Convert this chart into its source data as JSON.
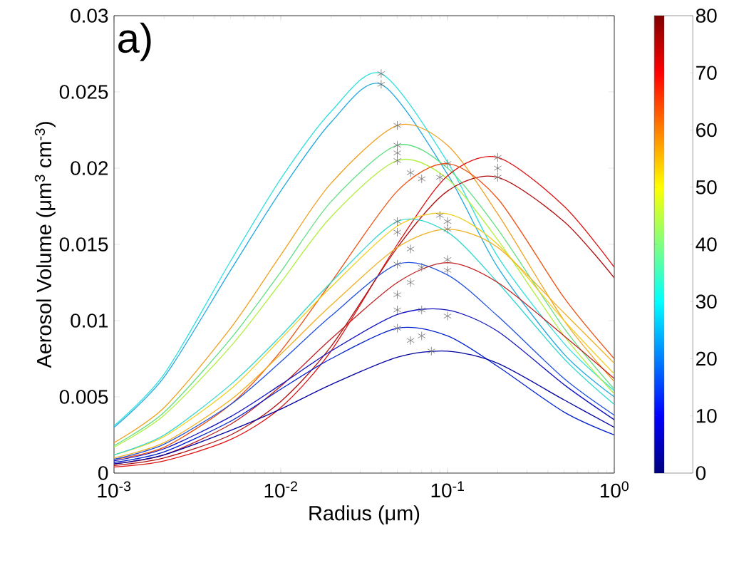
{
  "chart_data": {
    "type": "line",
    "xlabel": "Radius (μm)",
    "ylabel": "Aerosol Volume (μm$^{3}$ cm$^{-3}$)",
    "annotations": [
      "a)"
    ],
    "log": "x",
    "x": [
      0.001,
      0.002,
      0.005,
      0.01,
      0.02,
      0.05,
      0.1,
      0.2,
      0.5,
      1
    ],
    "xlim": [
      0.001,
      1
    ],
    "xticks": [
      {
        "value": 0.001,
        "label": "10$^{-3}$"
      },
      {
        "value": 0.01,
        "label": "10$^{-2}$"
      },
      {
        "value": 0.1,
        "label": "10$^{-1}$"
      },
      {
        "value": 1,
        "label": "10$^{0}$"
      }
    ],
    "ylim": [
      0,
      0.03
    ],
    "yticks": [
      0,
      0.005,
      0.01,
      0.015,
      0.02,
      0.025,
      0.03
    ],
    "clim": [
      0,
      80
    ],
    "cticks": [
      0,
      10,
      20,
      30,
      40,
      50,
      60,
      70,
      80
    ],
    "series": [
      {
        "color": "#30e0e0",
        "x": [
          0.001,
          0.002,
          0.005,
          0.01,
          0.02,
          0.04,
          0.1,
          0.2,
          0.5,
          1
        ],
        "values": [
          0.0031,
          0.0065,
          0.0139,
          0.0193,
          0.0237,
          0.0262,
          0.0204,
          0.0142,
          0.0085,
          0.0054
        ]
      },
      {
        "color": "#20a8e0",
        "x": [
          0.001,
          0.002,
          0.005,
          0.01,
          0.02,
          0.04,
          0.1,
          0.2,
          0.5,
          1
        ],
        "values": [
          0.003,
          0.0063,
          0.0133,
          0.0185,
          0.023,
          0.0255,
          0.0196,
          0.0135,
          0.0078,
          0.005
        ]
      },
      {
        "color": "#f0a020",
        "values": [
          0.002,
          0.0043,
          0.0095,
          0.0143,
          0.019,
          0.0228,
          0.0215,
          0.017,
          0.01,
          0.006
        ]
      },
      {
        "color": "#60e080",
        "values": [
          0.0018,
          0.004,
          0.0088,
          0.0132,
          0.0178,
          0.0215,
          0.02,
          0.016,
          0.0095,
          0.0055
        ]
      },
      {
        "color": "#b0f040",
        "values": [
          0.0017,
          0.0038,
          0.0083,
          0.0125,
          0.0168,
          0.0205,
          0.0193,
          0.0153,
          0.009,
          0.0052
        ]
      },
      {
        "color": "#e01010",
        "values": [
          0.0004,
          0.0008,
          0.0022,
          0.0043,
          0.008,
          0.015,
          0.0195,
          0.0207,
          0.0175,
          0.0135
        ]
      },
      {
        "color": "#b01010",
        "values": [
          0.0005,
          0.001,
          0.0025,
          0.0047,
          0.0083,
          0.0148,
          0.0185,
          0.0194,
          0.0165,
          0.0128
        ]
      },
      {
        "color": "#f05010",
        "values": [
          0.0009,
          0.0017,
          0.0045,
          0.008,
          0.0125,
          0.0185,
          0.0203,
          0.018,
          0.0115,
          0.0075
        ]
      },
      {
        "color": "#f0d020",
        "values": [
          0.0012,
          0.0024,
          0.0055,
          0.0088,
          0.0122,
          0.0162,
          0.017,
          0.015,
          0.01,
          0.0065
        ]
      },
      {
        "color": "#f0b020",
        "values": [
          0.001,
          0.002,
          0.0048,
          0.0078,
          0.011,
          0.0148,
          0.016,
          0.0148,
          0.0105,
          0.0072
        ]
      },
      {
        "color": "#30d8d0",
        "values": [
          0.0012,
          0.0025,
          0.0058,
          0.009,
          0.0125,
          0.0165,
          0.0158,
          0.0125,
          0.0075,
          0.0045
        ]
      },
      {
        "color": "#2050e0",
        "values": [
          0.0009,
          0.0019,
          0.0045,
          0.0073,
          0.0103,
          0.0137,
          0.013,
          0.0103,
          0.0062,
          0.0038
        ]
      },
      {
        "color": "#c02020",
        "values": [
          0.0006,
          0.0012,
          0.0032,
          0.0057,
          0.0088,
          0.0125,
          0.0138,
          0.0125,
          0.009,
          0.0062
        ]
      },
      {
        "color": "#1010c0",
        "values": [
          0.0008,
          0.0016,
          0.0037,
          0.0058,
          0.008,
          0.0104,
          0.0107,
          0.0093,
          0.0058,
          0.0035
        ]
      },
      {
        "color": "#0020d0",
        "values": [
          0.0007,
          0.0014,
          0.0034,
          0.0055,
          0.0075,
          0.0095,
          0.009,
          0.007,
          0.004,
          0.0025
        ]
      },
      {
        "color": "#0000a0",
        "values": [
          0.0006,
          0.0012,
          0.0028,
          0.0042,
          0.0058,
          0.0076,
          0.008,
          0.0072,
          0.0048,
          0.003
        ]
      },
      {
        "type": "scatter",
        "marker": "cross",
        "color": "#707070",
        "x": [
          0.04,
          0.04,
          0.05,
          0.05,
          0.05,
          0.05,
          0.06,
          0.07,
          0.09,
          0.1,
          0.2,
          0.2,
          0.2,
          0.05,
          0.05,
          0.09,
          0.1,
          0.1,
          0.06,
          0.05,
          0.07,
          0.1,
          0.1,
          0.06,
          0.05,
          0.05,
          0.07,
          0.05,
          0.06,
          0.07,
          0.08,
          0.1
        ],
        "values": [
          0.0262,
          0.0255,
          0.0228,
          0.0215,
          0.021,
          0.0205,
          0.0197,
          0.0193,
          0.0194,
          0.0203,
          0.0207,
          0.02,
          0.0194,
          0.0165,
          0.0158,
          0.0169,
          0.0165,
          0.016,
          0.0147,
          0.0137,
          0.0135,
          0.014,
          0.0133,
          0.0125,
          0.0117,
          0.0107,
          0.0107,
          0.0095,
          0.0087,
          0.009,
          0.008,
          0.0103
        ]
      }
    ]
  }
}
